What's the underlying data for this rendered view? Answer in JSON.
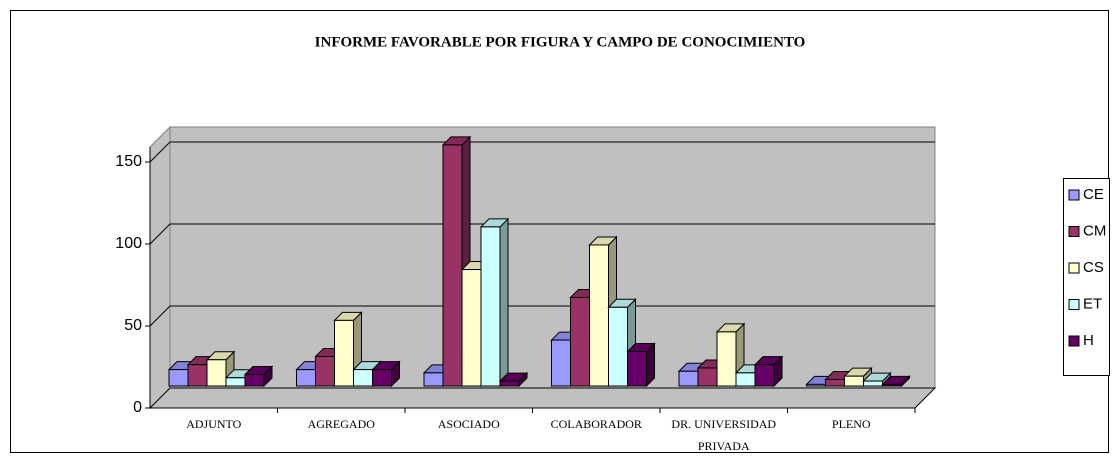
{
  "chart_data": {
    "type": "bar3d",
    "title": "INFORME FAVORABLE POR FIGURA Y CAMPO DE CONOCIMIENTO",
    "categories": [
      "ADJUNTO",
      "AGREGADO",
      "ASOCIADO",
      "COLABORADOR",
      "DR. UNIVERSIDAD PRIVADA",
      "PLENO"
    ],
    "series": [
      {
        "name": "CE",
        "color": "#9999ff",
        "values": [
          10,
          10,
          8,
          28,
          9,
          1
        ]
      },
      {
        "name": "CM",
        "color": "#993366",
        "values": [
          13,
          18,
          147,
          54,
          11,
          4
        ]
      },
      {
        "name": "CS",
        "color": "#ffffcc",
        "values": [
          16,
          40,
          71,
          86,
          33,
          6
        ]
      },
      {
        "name": "ET",
        "color": "#ccffff",
        "values": [
          5,
          10,
          97,
          48,
          8,
          3
        ]
      },
      {
        "name": "H",
        "color": "#660066",
        "values": [
          7,
          10,
          3,
          21,
          13,
          1
        ]
      }
    ],
    "ylim": [
      0,
      150
    ],
    "yticks": [
      0,
      50,
      100,
      150
    ],
    "grid": true,
    "legend": "right"
  }
}
